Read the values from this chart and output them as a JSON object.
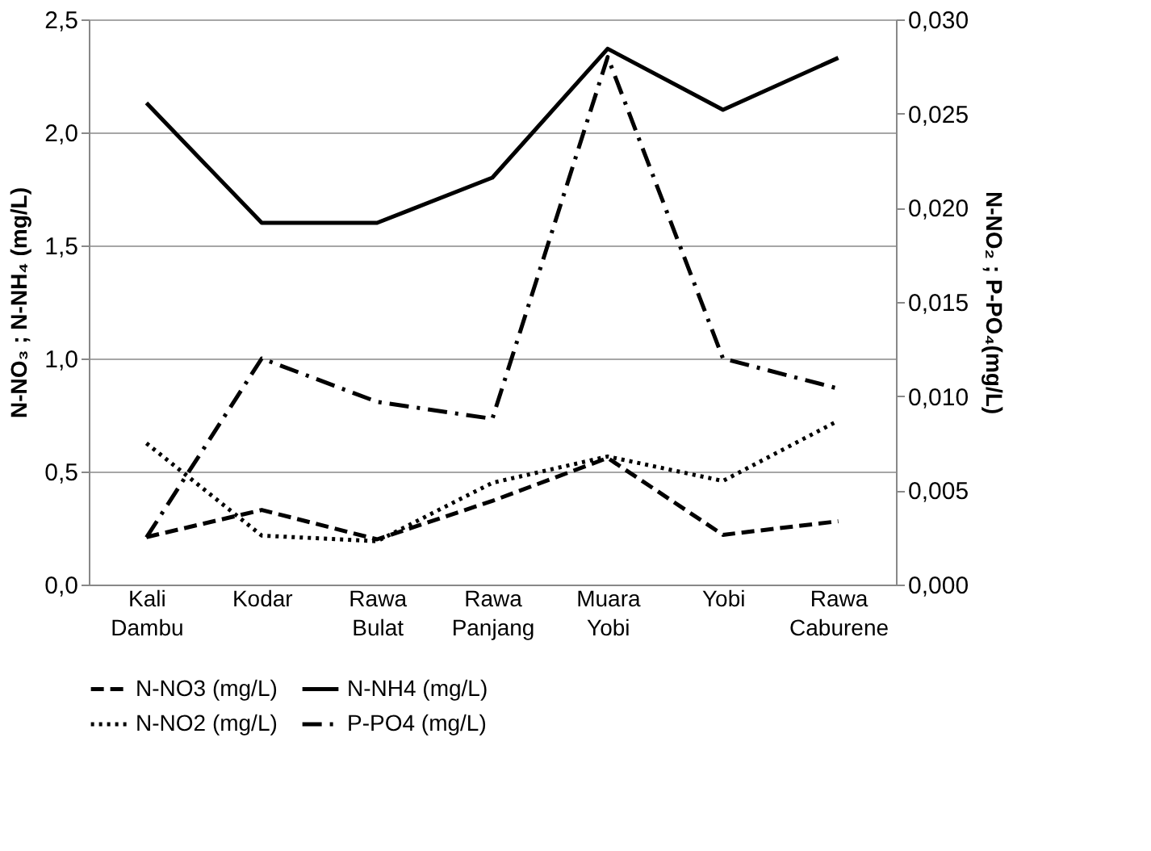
{
  "chart_data": {
    "type": "line",
    "categories": [
      "Kali Dambu",
      "Kodar",
      "Rawa Bulat",
      "Rawa Panjang",
      "Muara Yobi",
      "Yobi",
      "Rawa Caburene"
    ],
    "ylabel": "N-NO₃ ; N-NH₄ (mg/L)",
    "y2label": "N-NO₂ ; P-PO₄(mg/L)",
    "ylim": [
      0,
      2.5
    ],
    "yticks": [
      {
        "value": 0,
        "label": "0,0"
      },
      {
        "value": 0.5,
        "label": "0,5"
      },
      {
        "value": 1,
        "label": "1,0"
      },
      {
        "value": 1.5,
        "label": "1,5"
      },
      {
        "value": 2,
        "label": "2,0"
      },
      {
        "value": 2.5,
        "label": "2,5"
      }
    ],
    "y2lim": [
      0,
      0.03
    ],
    "y2ticks": [
      {
        "value": 0,
        "label": "0,000"
      },
      {
        "value": 0.005,
        "label": "0,005"
      },
      {
        "value": 0.01,
        "label": "0,010"
      },
      {
        "value": 0.015,
        "label": "0,015"
      },
      {
        "value": 0.02,
        "label": "0,020"
      },
      {
        "value": 0.025,
        "label": "0,025"
      },
      {
        "value": 0.03,
        "label": "0,030"
      }
    ],
    "grid": "y",
    "legend": "bottom",
    "marker": "none",
    "series": [
      {
        "name": "N-NO3 (mg/L)",
        "color": "#000000",
        "line_style": "dashed",
        "values": [
          0.21,
          0.33,
          0.2,
          0.37,
          0.56,
          0.22,
          0.28
        ]
      },
      {
        "name": "N-NH4 (mg/L)",
        "color": "#000000",
        "line_style": "solid",
        "values": [
          2.13,
          1.6,
          1.6,
          1.8,
          2.37,
          2.1,
          2.33
        ]
      },
      {
        "name": "N-NO2 (mg/L)",
        "color": "#000000",
        "line_style": "dotted",
        "axis": "y2",
        "values": [
          0.0075,
          0.0026,
          0.0023,
          0.0054,
          0.0068,
          0.0055,
          0.0087
        ]
      },
      {
        "name": "P-PO4 (mg/L)",
        "color": "#000000",
        "line_style": "dashdot",
        "axis": "y2",
        "values": [
          0.0025,
          0.012,
          0.0097,
          0.0088,
          0.028,
          0.012,
          0.0104
        ]
      }
    ]
  }
}
